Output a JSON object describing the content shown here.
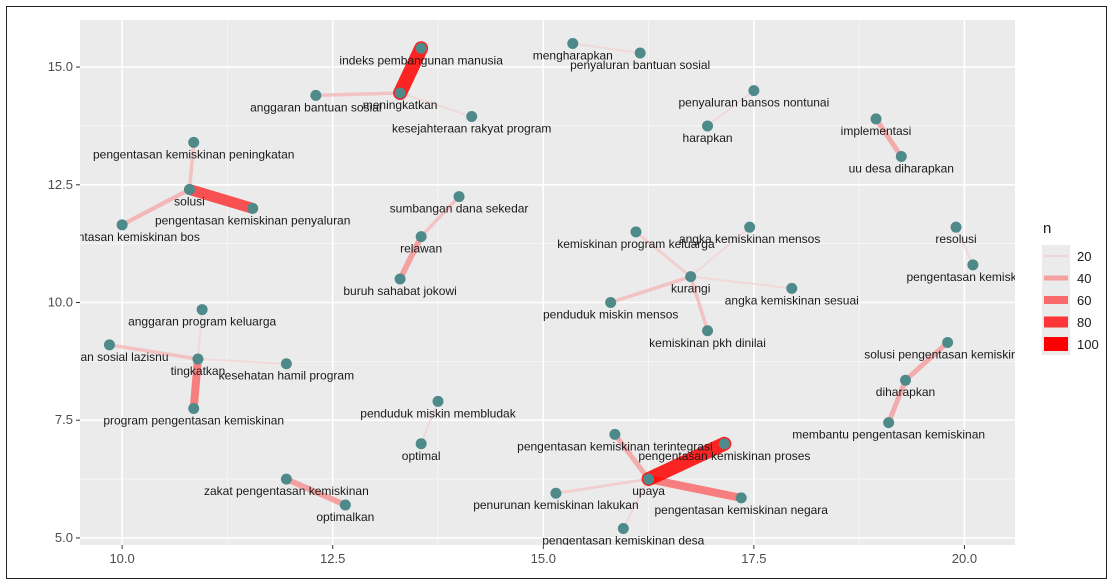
{
  "chart_data": {
    "type": "network",
    "xlim": [
      9.5,
      20.6
    ],
    "ylim": [
      4.85,
      16.0
    ],
    "x_ticks": [
      10.0,
      12.5,
      15.0,
      17.5,
      20.0
    ],
    "x_tick_labels": [
      "10.0",
      "12.5",
      "15.0",
      "17.5",
      "20.0"
    ],
    "y_ticks": [
      5.0,
      7.5,
      10.0,
      12.5,
      15.0
    ],
    "y_tick_labels": [
      "5.0",
      "7.5",
      "10.0",
      "12.5",
      "15.0"
    ],
    "grid": true,
    "legend": {
      "title": "n",
      "position": "right",
      "entries": [
        {
          "label": "20",
          "value": 20
        },
        {
          "label": "40",
          "value": 40
        },
        {
          "label": "60",
          "value": 60
        },
        {
          "label": "80",
          "value": 80
        },
        {
          "label": "100",
          "value": 100
        }
      ]
    },
    "colors": {
      "panel": "#ebebeb",
      "grid_major": "#ffffff",
      "node": "#4f8a8b",
      "edge_low": "#f2d6d6",
      "edge_high": "#ff0000"
    },
    "nodes": [
      {
        "label": "indeks pembangunan manusia",
        "x": 13.55,
        "y": 15.4
      },
      {
        "label": "meningkatkan",
        "x": 13.3,
        "y": 14.45
      },
      {
        "label": "anggaran bantuan sosial",
        "x": 12.3,
        "y": 14.4
      },
      {
        "label": "kesejahteraan rakyat program",
        "x": 14.15,
        "y": 13.95
      },
      {
        "label": "mengharapkan",
        "x": 15.35,
        "y": 15.5
      },
      {
        "label": "penyaluran bantuan sosial",
        "x": 16.15,
        "y": 15.3
      },
      {
        "label": "penyaluran bansos nontunai",
        "x": 17.5,
        "y": 14.5
      },
      {
        "label": "harapkan",
        "x": 16.95,
        "y": 13.75
      },
      {
        "label": "implementasi",
        "x": 18.95,
        "y": 13.9
      },
      {
        "label": "uu desa diharapkan",
        "x": 19.25,
        "y": 13.1
      },
      {
        "label": "pengentasan kemiskinan peningkatan",
        "x": 10.85,
        "y": 13.4
      },
      {
        "label": "solusi",
        "x": 10.8,
        "y": 12.4
      },
      {
        "label": "pengentasan kemiskinan penyaluran",
        "x": 11.55,
        "y": 12.0
      },
      {
        "label": "pengentasan kemiskinan bos",
        "x": 10.0,
        "y": 11.65
      },
      {
        "label": "sumbangan dana sekedar",
        "x": 14.0,
        "y": 12.25
      },
      {
        "label": "relawan",
        "x": 13.55,
        "y": 11.4
      },
      {
        "label": "buruh sahabat jokowi",
        "x": 13.3,
        "y": 10.5
      },
      {
        "label": "kemiskinan program keluarga",
        "x": 16.1,
        "y": 11.5
      },
      {
        "label": "angka kemiskinan mensos",
        "x": 17.45,
        "y": 11.6
      },
      {
        "label": "kurangi",
        "x": 16.75,
        "y": 10.55
      },
      {
        "label": "angka kemiskinan sesuai",
        "x": 17.95,
        "y": 10.3
      },
      {
        "label": "penduduk miskin mensos",
        "x": 15.8,
        "y": 10.0
      },
      {
        "label": "kemiskinan pkh dinilai",
        "x": 16.95,
        "y": 9.4
      },
      {
        "label": "resolusi",
        "x": 19.9,
        "y": 11.6
      },
      {
        "label": "pengentasan kemiskinan",
        "x": 20.1,
        "y": 10.8
      },
      {
        "label": "anggaran program keluarga",
        "x": 10.95,
        "y": 9.85
      },
      {
        "label": "bantuan sosial lazisnu",
        "x": 9.85,
        "y": 9.1
      },
      {
        "label": "tingkatkan",
        "x": 10.9,
        "y": 8.8
      },
      {
        "label": "kesehatan hamil program",
        "x": 11.95,
        "y": 8.7
      },
      {
        "label": "program pengentasan kemiskinan",
        "x": 10.85,
        "y": 7.75
      },
      {
        "label": "solusi pengentasan kemiskinan",
        "x": 19.8,
        "y": 9.15
      },
      {
        "label": "diharapkan",
        "x": 19.3,
        "y": 8.35
      },
      {
        "label": "membantu pengentasan kemiskinan",
        "x": 19.1,
        "y": 7.45
      },
      {
        "label": "penduduk miskin membludak",
        "x": 13.75,
        "y": 7.9
      },
      {
        "label": "optimal",
        "x": 13.55,
        "y": 7.0
      },
      {
        "label": "pengentasan kemiskinan terintegrasi",
        "x": 15.85,
        "y": 7.2
      },
      {
        "label": "pengentasan kemiskinan proses",
        "x": 17.15,
        "y": 7.0
      },
      {
        "label": "upaya",
        "x": 16.25,
        "y": 6.25
      },
      {
        "label": "pengentasan kemiskinan negara",
        "x": 17.35,
        "y": 5.85
      },
      {
        "label": "penurunan kemiskinan lakukan",
        "x": 15.15,
        "y": 5.95
      },
      {
        "label": "pengentasan kemiskinan desa",
        "x": 15.95,
        "y": 5.2
      },
      {
        "label": "zakat pengentasan kemiskinan",
        "x": 11.95,
        "y": 6.25
      },
      {
        "label": "optimalkan",
        "x": 12.65,
        "y": 5.7
      }
    ],
    "edges": [
      {
        "from": "meningkatkan",
        "to": "indeks pembangunan manusia",
        "n": 100
      },
      {
        "from": "meningkatkan",
        "to": "anggaran bantuan sosial",
        "n": 30
      },
      {
        "from": "meningkatkan",
        "to": "kesejahteraan rakyat program",
        "n": 20
      },
      {
        "from": "mengharapkan",
        "to": "penyaluran bantuan sosial",
        "n": 20
      },
      {
        "from": "harapkan",
        "to": "penyaluran bansos nontunai",
        "n": 20
      },
      {
        "from": "implementasi",
        "to": "uu desa diharapkan",
        "n": 40
      },
      {
        "from": "solusi",
        "to": "pengentasan kemiskinan penyaluran",
        "n": 80
      },
      {
        "from": "solusi",
        "to": "pengentasan kemiskinan peningkatan",
        "n": 30
      },
      {
        "from": "solusi",
        "to": "pengentasan kemiskinan bos",
        "n": 35
      },
      {
        "from": "relawan",
        "to": "sumbangan dana sekedar",
        "n": 30
      },
      {
        "from": "relawan",
        "to": "buruh sahabat jokowi",
        "n": 45
      },
      {
        "from": "kurangi",
        "to": "kemiskinan program keluarga",
        "n": 25
      },
      {
        "from": "kurangi",
        "to": "angka kemiskinan mensos",
        "n": 20
      },
      {
        "from": "kurangi",
        "to": "angka kemiskinan sesuai",
        "n": 20
      },
      {
        "from": "kurangi",
        "to": "penduduk miskin mensos",
        "n": 30
      },
      {
        "from": "kurangi",
        "to": "kemiskinan pkh dinilai",
        "n": 30
      },
      {
        "from": "resolusi",
        "to": "pengentasan kemiskinan",
        "n": 20
      },
      {
        "from": "tingkatkan",
        "to": "anggaran program keluarga",
        "n": 20
      },
      {
        "from": "tingkatkan",
        "to": "bantuan sosial lazisnu",
        "n": 30
      },
      {
        "from": "tingkatkan",
        "to": "kesehatan hamil program",
        "n": 20
      },
      {
        "from": "tingkatkan",
        "to": "program pengentasan kemiskinan",
        "n": 60
      },
      {
        "from": "diharapkan",
        "to": "solusi pengentasan kemiskinan",
        "n": 40
      },
      {
        "from": "diharapkan",
        "to": "membantu pengentasan kemiskinan",
        "n": 40
      },
      {
        "from": "optimal",
        "to": "penduduk miskin membludak",
        "n": 20
      },
      {
        "from": "upaya",
        "to": "pengentasan kemiskinan proses",
        "n": 100
      },
      {
        "from": "upaya",
        "to": "pengentasan kemiskinan terintegrasi",
        "n": 40
      },
      {
        "from": "upaya",
        "to": "pengentasan kemiskinan negara",
        "n": 60
      },
      {
        "from": "upaya",
        "to": "penurunan kemiskinan lakukan",
        "n": 25
      },
      {
        "from": "upaya",
        "to": "pengentasan kemiskinan desa",
        "n": 20
      },
      {
        "from": "zakat pengentasan kemiskinan",
        "to": "optimalkan",
        "n": 45
      }
    ]
  }
}
